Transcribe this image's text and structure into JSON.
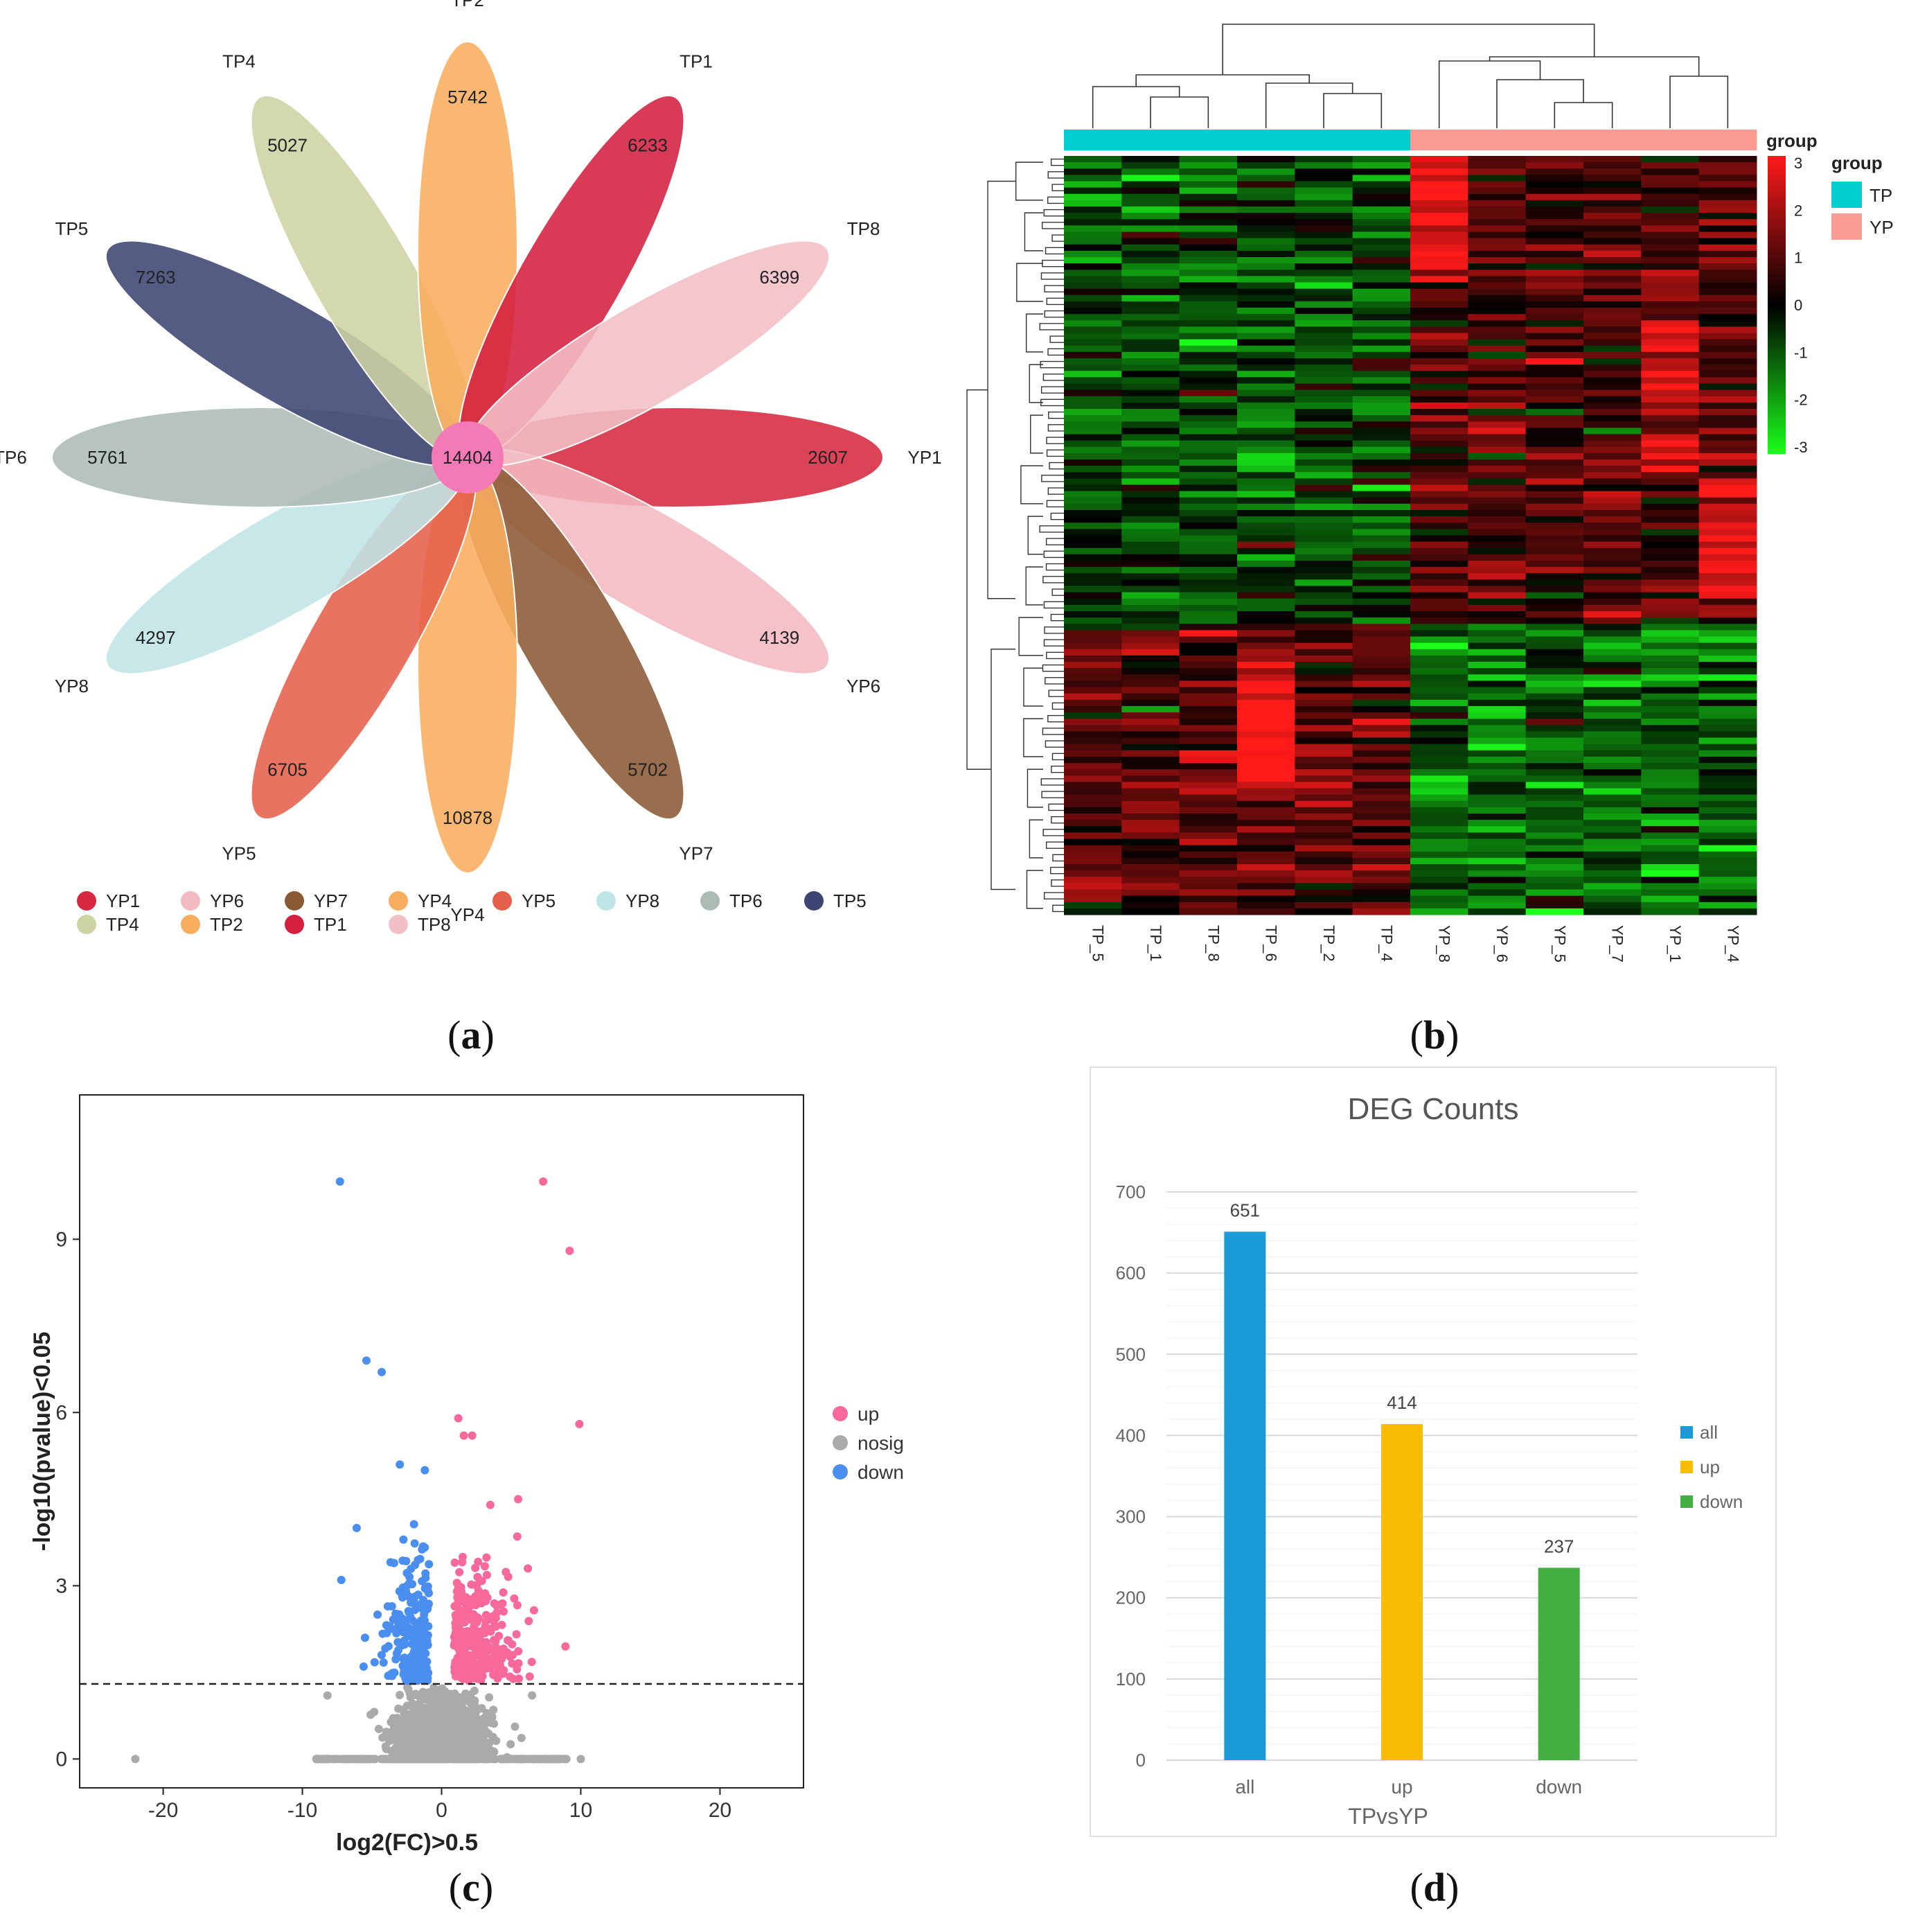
{
  "captions": {
    "a": "a",
    "b": "b",
    "c": "c",
    "d": "d"
  },
  "chart_data": [
    {
      "type": "flower",
      "center_value": "14404",
      "petals": [
        {
          "label": "YP1",
          "value": 2607,
          "color": "#d6293f"
        },
        {
          "label": "YP6",
          "value": 4139,
          "color": "#f2b9c0"
        },
        {
          "label": "YP7",
          "value": 5702,
          "color": "#8a5a35"
        },
        {
          "label": "YP4",
          "value": 10878,
          "color": "#f9ad5e"
        },
        {
          "label": "YP5",
          "value": 6705,
          "color": "#e5604a"
        },
        {
          "label": "YP8",
          "value": 4297,
          "color": "#bfe4e6"
        },
        {
          "label": "TP6",
          "value": 5761,
          "color": "#adbbb5"
        },
        {
          "label": "TP5",
          "value": 7263,
          "color": "#3d4573"
        },
        {
          "label": "TP4",
          "value": 5027,
          "color": "#cdd3a3"
        },
        {
          "label": "TP2",
          "value": 5742,
          "color": "#f9ad5e"
        },
        {
          "label": "TP1",
          "value": 6233,
          "color": "#d41f3e"
        },
        {
          "label": "TP8",
          "value": 6399,
          "color": "#f2bfc6"
        }
      ],
      "center_color": "#f47ab7"
    },
    {
      "type": "heatmap",
      "columns": [
        "TP_5",
        "TP_1",
        "TP_8",
        "TP_6",
        "TP_2",
        "TP_4",
        "YP_8",
        "YP_6",
        "YP_5",
        "YP_7",
        "YP_1",
        "YP_4"
      ],
      "groups": [
        {
          "name": "TP",
          "color": "#00ced1"
        },
        {
          "name": "YP",
          "color": "#f89c94"
        }
      ],
      "legend_title": "group",
      "colorbar_title": "group",
      "colorbar_ticks": [
        "3",
        "2",
        "1",
        "0",
        "-1",
        "-2",
        "-3"
      ],
      "color_range": [
        -3,
        3
      ],
      "colors": {
        "high": "#ff1a1a",
        "mid": "#000000",
        "low": "#1aff1a"
      }
    },
    {
      "type": "scatter",
      "xlabel": "log2(FC)>0.5",
      "ylabel": "-log10(pvalue)<0.05",
      "xlim": [
        -26,
        26
      ],
      "ylim": [
        -0.5,
        11.5
      ],
      "xticks": [
        "-20",
        "-10",
        "0",
        "10",
        "20"
      ],
      "yticks": [
        "0",
        "3",
        "6",
        "9"
      ],
      "threshold": 1.3,
      "legend": [
        {
          "name": "up",
          "color": "#f7699a"
        },
        {
          "name": "nosig",
          "color": "#aaaaaa"
        },
        {
          "name": "down",
          "color": "#4a8ff0"
        }
      ],
      "highlight_points": {
        "up": [
          [
            7.3,
            10.0
          ],
          [
            9.2,
            8.8
          ],
          [
            9.9,
            5.8
          ],
          [
            1.2,
            5.9
          ],
          [
            1.6,
            5.6
          ],
          [
            2.2,
            5.6
          ],
          [
            5.5,
            4.5
          ],
          [
            3.5,
            4.4
          ],
          [
            6.2,
            3.3
          ],
          [
            8.9,
            1.95
          ]
        ],
        "down": [
          [
            -7.3,
            10.0
          ],
          [
            -5.4,
            6.9
          ],
          [
            -4.3,
            6.7
          ],
          [
            -3.0,
            5.1
          ],
          [
            -1.2,
            5.0
          ],
          [
            -6.1,
            4.0
          ],
          [
            -7.2,
            3.1
          ],
          [
            -4.6,
            2.5
          ],
          [
            -5.5,
            2.1
          ],
          [
            -5.6,
            1.6
          ]
        ],
        "nosig": [
          [
            -22,
            0.0
          ],
          [
            -9,
            0.0
          ],
          [
            -7.8,
            0.0
          ],
          [
            -8.3,
            0.0
          ],
          [
            10,
            0.0
          ],
          [
            7.5,
            0.0
          ],
          [
            -8.2,
            1.1
          ],
          [
            6.5,
            1.1
          ]
        ]
      }
    },
    {
      "type": "bar",
      "title": "DEG Counts",
      "categories": [
        "all",
        "up",
        "down"
      ],
      "values": [
        651,
        414,
        237
      ],
      "colors": [
        "#1a9ad6",
        "#fbbc05",
        "#41b03f"
      ],
      "xlabel": "TPvsYP",
      "ylabel": "",
      "ylim": [
        0,
        700
      ],
      "yticks": [
        "0",
        "100",
        "200",
        "300",
        "400",
        "500",
        "600",
        "700"
      ],
      "legend": [
        "all",
        "up",
        "down"
      ]
    }
  ]
}
